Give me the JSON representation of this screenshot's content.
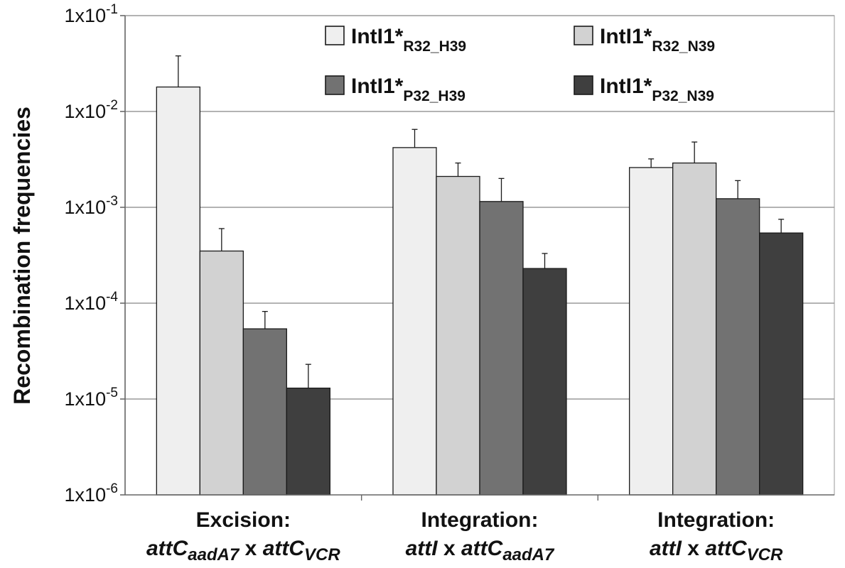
{
  "chart_data": {
    "type": "bar",
    "log_scale": true,
    "ylim": [
      1e-06,
      0.1
    ],
    "ylabel": "Recombination frequencies",
    "y_ticks": [
      {
        "value": 1e-06,
        "mantissa": "1x10",
        "exp": "-6"
      },
      {
        "value": 1e-05,
        "mantissa": "1x10",
        "exp": "-5"
      },
      {
        "value": 0.0001,
        "mantissa": "1x10",
        "exp": "-4"
      },
      {
        "value": 0.001,
        "mantissa": "1x10",
        "exp": "-3"
      },
      {
        "value": 0.01,
        "mantissa": "1x10",
        "exp": "-2"
      },
      {
        "value": 0.1,
        "mantissa": "1x10",
        "exp": "-1"
      }
    ],
    "grid": true,
    "legend_position": "top",
    "categories": [
      {
        "line1": "Excision:",
        "line2": [
          {
            "text": "attC",
            "italic": true,
            "sub": false
          },
          {
            "text": "aadA7",
            "italic": true,
            "sub": true
          },
          {
            "text": " x ",
            "italic": false,
            "sub": false
          },
          {
            "text": "attC",
            "italic": true,
            "sub": false
          },
          {
            "text": "VCR",
            "italic": true,
            "sub": true
          }
        ]
      },
      {
        "line1": "Integration:",
        "line2": [
          {
            "text": "attI",
            "italic": true,
            "sub": false
          },
          {
            "text": " x ",
            "italic": false,
            "sub": false
          },
          {
            "text": "attC",
            "italic": true,
            "sub": false
          },
          {
            "text": "aadA7",
            "italic": true,
            "sub": true
          }
        ]
      },
      {
        "line1": "Integration:",
        "line2": [
          {
            "text": "attI",
            "italic": true,
            "sub": false
          },
          {
            "text": " x ",
            "italic": false,
            "sub": false
          },
          {
            "text": "attC",
            "italic": true,
            "sub": false
          },
          {
            "text": "VCR",
            "italic": true,
            "sub": true
          }
        ]
      }
    ],
    "series": [
      {
        "name": "IntI1*",
        "name_sub": "R32_H39",
        "color": "#efefef",
        "values": [
          0.018,
          0.0042,
          0.0026
        ],
        "errors": [
          0.038,
          0.0065,
          0.0032
        ]
      },
      {
        "name": "IntI1*",
        "name_sub": "R32_N39",
        "color": "#d2d2d2",
        "values": [
          0.00035,
          0.0021,
          0.0029
        ],
        "errors": [
          0.0006,
          0.0029,
          0.0048
        ]
      },
      {
        "name": "IntI1*",
        "name_sub": "P32_H39",
        "color": "#727272",
        "values": [
          5.4e-05,
          0.00115,
          0.00123
        ],
        "errors": [
          8.2e-05,
          0.002,
          0.0019
        ]
      },
      {
        "name": "IntI1*",
        "name_sub": "P32_N39",
        "color": "#3f3f3f",
        "values": [
          1.3e-05,
          0.00023,
          0.00054
        ],
        "errors": [
          2.3e-05,
          0.00033,
          0.00075
        ]
      }
    ]
  }
}
